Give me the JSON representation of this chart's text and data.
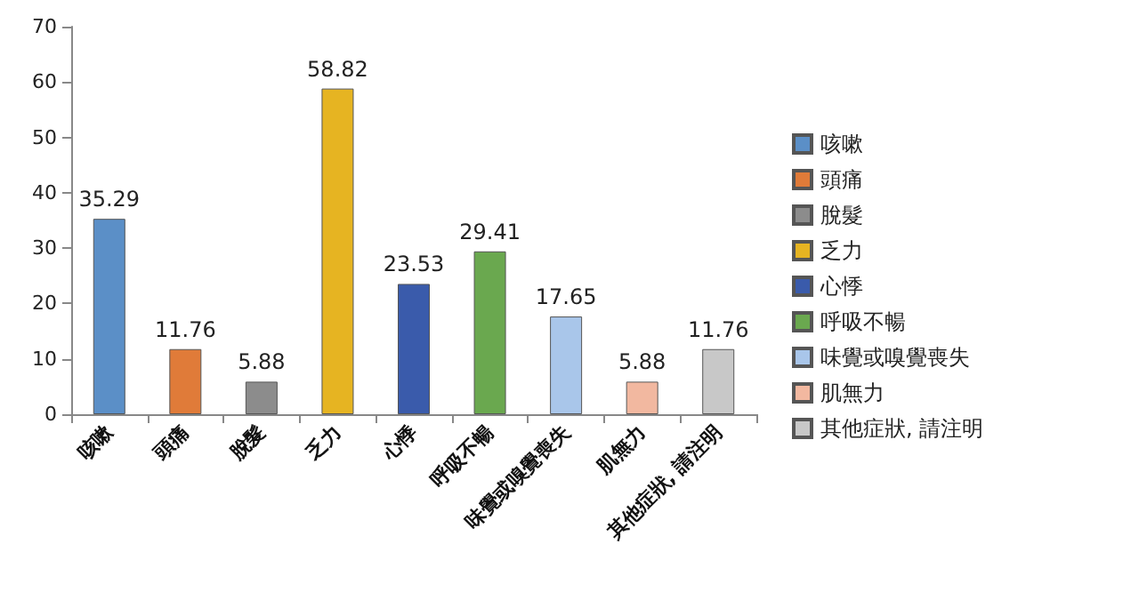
{
  "chart_data": {
    "type": "bar",
    "categories": [
      "咳嗽",
      "頭痛",
      "脫髮",
      "乏力",
      "心悸",
      "呼吸不暢",
      "味覺或嗅覺喪失",
      "肌無力",
      "其他症狀, 請注明"
    ],
    "series": [
      {
        "name": "咳嗽",
        "color": "#5b8fc7",
        "values": [
          35.29,
          null,
          null,
          null,
          null,
          null,
          null,
          null,
          null
        ]
      },
      {
        "name": "頭痛",
        "color": "#e07b39",
        "values": [
          null,
          11.76,
          null,
          null,
          null,
          null,
          null,
          null,
          null
        ]
      },
      {
        "name": "脫髮",
        "color": "#8c8c8c",
        "values": [
          null,
          null,
          5.88,
          null,
          null,
          null,
          null,
          null,
          null
        ]
      },
      {
        "name": "乏力",
        "color": "#e6b422",
        "values": [
          null,
          null,
          null,
          58.82,
          null,
          null,
          null,
          null,
          null
        ]
      },
      {
        "name": "心悸",
        "color": "#3a5bab",
        "values": [
          null,
          null,
          null,
          null,
          23.53,
          null,
          null,
          null,
          null
        ]
      },
      {
        "name": "呼吸不暢",
        "color": "#6aa84f",
        "values": [
          null,
          null,
          null,
          null,
          null,
          29.41,
          null,
          null,
          null
        ]
      },
      {
        "name": "味覺或嗅覺喪失",
        "color": "#a9c6ea",
        "values": [
          null,
          null,
          null,
          null,
          null,
          null,
          17.65,
          null,
          null
        ]
      },
      {
        "name": "肌無力",
        "color": "#f2b8a0",
        "values": [
          null,
          null,
          null,
          null,
          null,
          null,
          null,
          5.88,
          null
        ]
      },
      {
        "name": "其他症狀, 請注明",
        "color": "#c8c8c8",
        "values": [
          null,
          null,
          null,
          null,
          null,
          null,
          null,
          null,
          11.76
        ]
      }
    ],
    "ylim": [
      0,
      70
    ],
    "yticks": [
      0,
      10,
      20,
      30,
      40,
      50,
      60,
      70
    ],
    "grid": false,
    "legend": "right",
    "data_labels": true
  }
}
